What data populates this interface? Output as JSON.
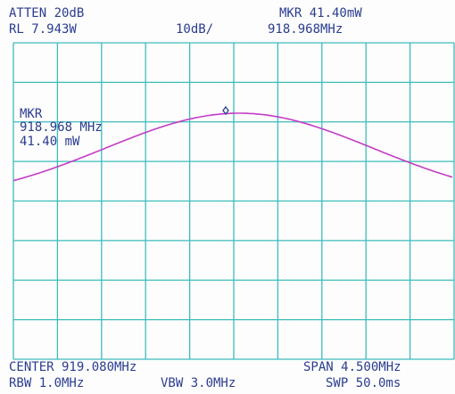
{
  "header": {
    "atten": "ATTEN 20dB",
    "ref_level": "RL 7.943W",
    "scale": "10dB/",
    "marker_level": "MKR 41.40mW",
    "marker_freq": "918.968MHz"
  },
  "marker_box": {
    "label": "MKR",
    "freq": "918.968 MHz",
    "level": "41.40 mW"
  },
  "footer": {
    "center": "CENTER 919.080MHz",
    "span": "SPAN 4.500MHz",
    "rbw": "RBW 1.0MHz",
    "vbw": "VBW 3.0MHz",
    "sweep": "SWP 50.0ms"
  }
}
